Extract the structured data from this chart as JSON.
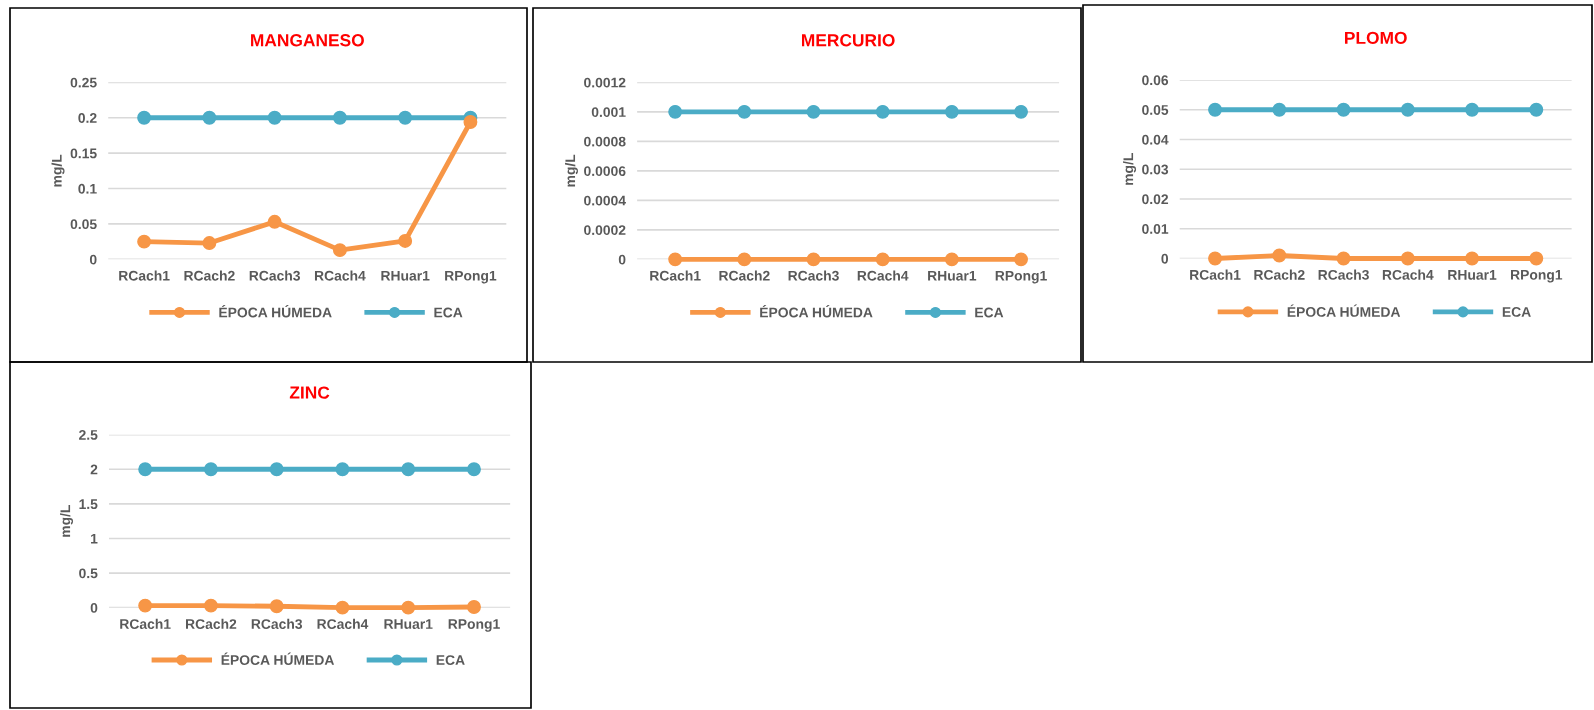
{
  "chart_data": [
    {
      "type": "line",
      "title": "MANGANESO",
      "ylabel": "mg/L",
      "categories": [
        "RCach1",
        "RCach2",
        "RCach3",
        "RCach4",
        "RHuar1",
        "RPong1"
      ],
      "series": [
        {
          "name": "ÉPOCA HÚMEDA",
          "color": "#f79646",
          "values": [
            0.025,
            0.023,
            0.053,
            0.013,
            0.026,
            0.194
          ]
        },
        {
          "name": "ECA",
          "color": "#4bacc6",
          "values": [
            0.2,
            0.2,
            0.2,
            0.2,
            0.2,
            0.2
          ]
        }
      ],
      "ylim": [
        0,
        0.25
      ],
      "yticks": [
        0,
        0.05,
        0.1,
        0.15,
        0.2,
        0.25
      ],
      "grid": "y",
      "legend": "bottom",
      "marker": "circle",
      "line_style": "solid"
    },
    {
      "type": "line",
      "title": "MERCURIO",
      "ylabel": "mg/L",
      "categories": [
        "RCach1",
        "RCach2",
        "RCach3",
        "RCach4",
        "RHuar1",
        "RPong1"
      ],
      "series": [
        {
          "name": "ÉPOCA HÚMEDA",
          "color": "#f79646",
          "values": [
            0,
            0,
            0,
            0,
            0,
            0
          ]
        },
        {
          "name": "ECA",
          "color": "#4bacc6",
          "values": [
            0.001,
            0.001,
            0.001,
            0.001,
            0.001,
            0.001
          ]
        }
      ],
      "ylim": [
        0,
        0.0012
      ],
      "yticks": [
        0,
        0.0002,
        0.0004,
        0.0006,
        0.0008,
        0.001,
        0.0012
      ],
      "grid": "y",
      "legend": "bottom",
      "marker": "circle",
      "line_style": "solid"
    },
    {
      "type": "line",
      "title": "PLOMO",
      "ylabel": "mg/L",
      "categories": [
        "RCach1",
        "RCach2",
        "RCach3",
        "RCach4",
        "RHuar1",
        "RPong1"
      ],
      "series": [
        {
          "name": "ÉPOCA HÚMEDA",
          "color": "#f79646",
          "values": [
            0,
            0.001,
            0,
            0,
            0,
            0
          ]
        },
        {
          "name": "ECA",
          "color": "#4bacc6",
          "values": [
            0.05,
            0.05,
            0.05,
            0.05,
            0.05,
            0.05
          ]
        }
      ],
      "ylim": [
        0,
        0.06
      ],
      "yticks": [
        0,
        0.01,
        0.02,
        0.03,
        0.04,
        0.05,
        0.06
      ],
      "grid": "y",
      "legend": "bottom",
      "marker": "circle",
      "line_style": "solid"
    },
    {
      "type": "line",
      "title": "ZINC",
      "ylabel": "mg/L",
      "categories": [
        "RCach1",
        "RCach2",
        "RCach3",
        "RCach4",
        "RHuar1",
        "RPong1"
      ],
      "series": [
        {
          "name": "ÉPOCA HÚMEDA",
          "color": "#f79646",
          "values": [
            0.03,
            0.03,
            0.02,
            0,
            0,
            0.01
          ]
        },
        {
          "name": "ECA",
          "color": "#4bacc6",
          "values": [
            2,
            2,
            2,
            2,
            2,
            2
          ]
        }
      ],
      "ylim": [
        0,
        2.5
      ],
      "yticks": [
        0,
        0.5,
        1,
        1.5,
        2,
        2.5
      ],
      "grid": "y",
      "legend": "bottom",
      "marker": "circle",
      "line_style": "solid"
    }
  ]
}
